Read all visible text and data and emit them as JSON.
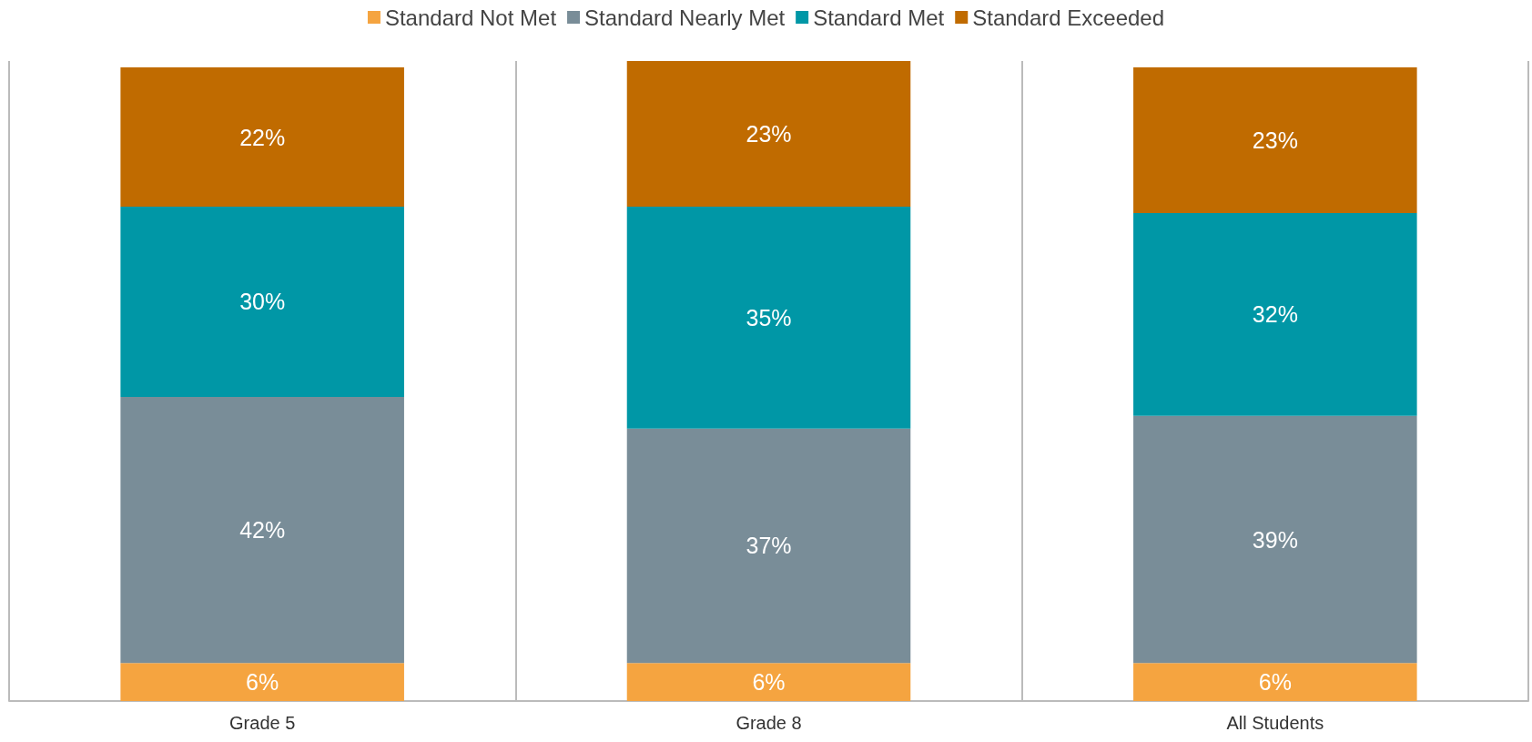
{
  "chart_data": {
    "type": "bar",
    "stacked": true,
    "categories": [
      "Grade 5",
      "Grade 8",
      "All Students"
    ],
    "series": [
      {
        "name": "Standard Not Met",
        "color": "#f5a440",
        "values": [
          6,
          6,
          6
        ],
        "value_labels": [
          "6%",
          "6%",
          "6%"
        ]
      },
      {
        "name": "Standard Nearly Met",
        "color": "#798d98",
        "values": [
          42,
          37,
          39
        ],
        "value_labels": [
          "42%",
          "37%",
          "39%"
        ]
      },
      {
        "name": "Standard Met",
        "color": "#0097a6",
        "values": [
          30,
          35,
          32
        ],
        "value_labels": [
          "30%",
          "35%",
          "32%"
        ]
      },
      {
        "name": "Standard Exceeded",
        "color": "#c06b00",
        "values": [
          22,
          23,
          23
        ],
        "value_labels": [
          "22%",
          "23%",
          "23%"
        ]
      }
    ],
    "legend": "top",
    "grid": "x"
  }
}
